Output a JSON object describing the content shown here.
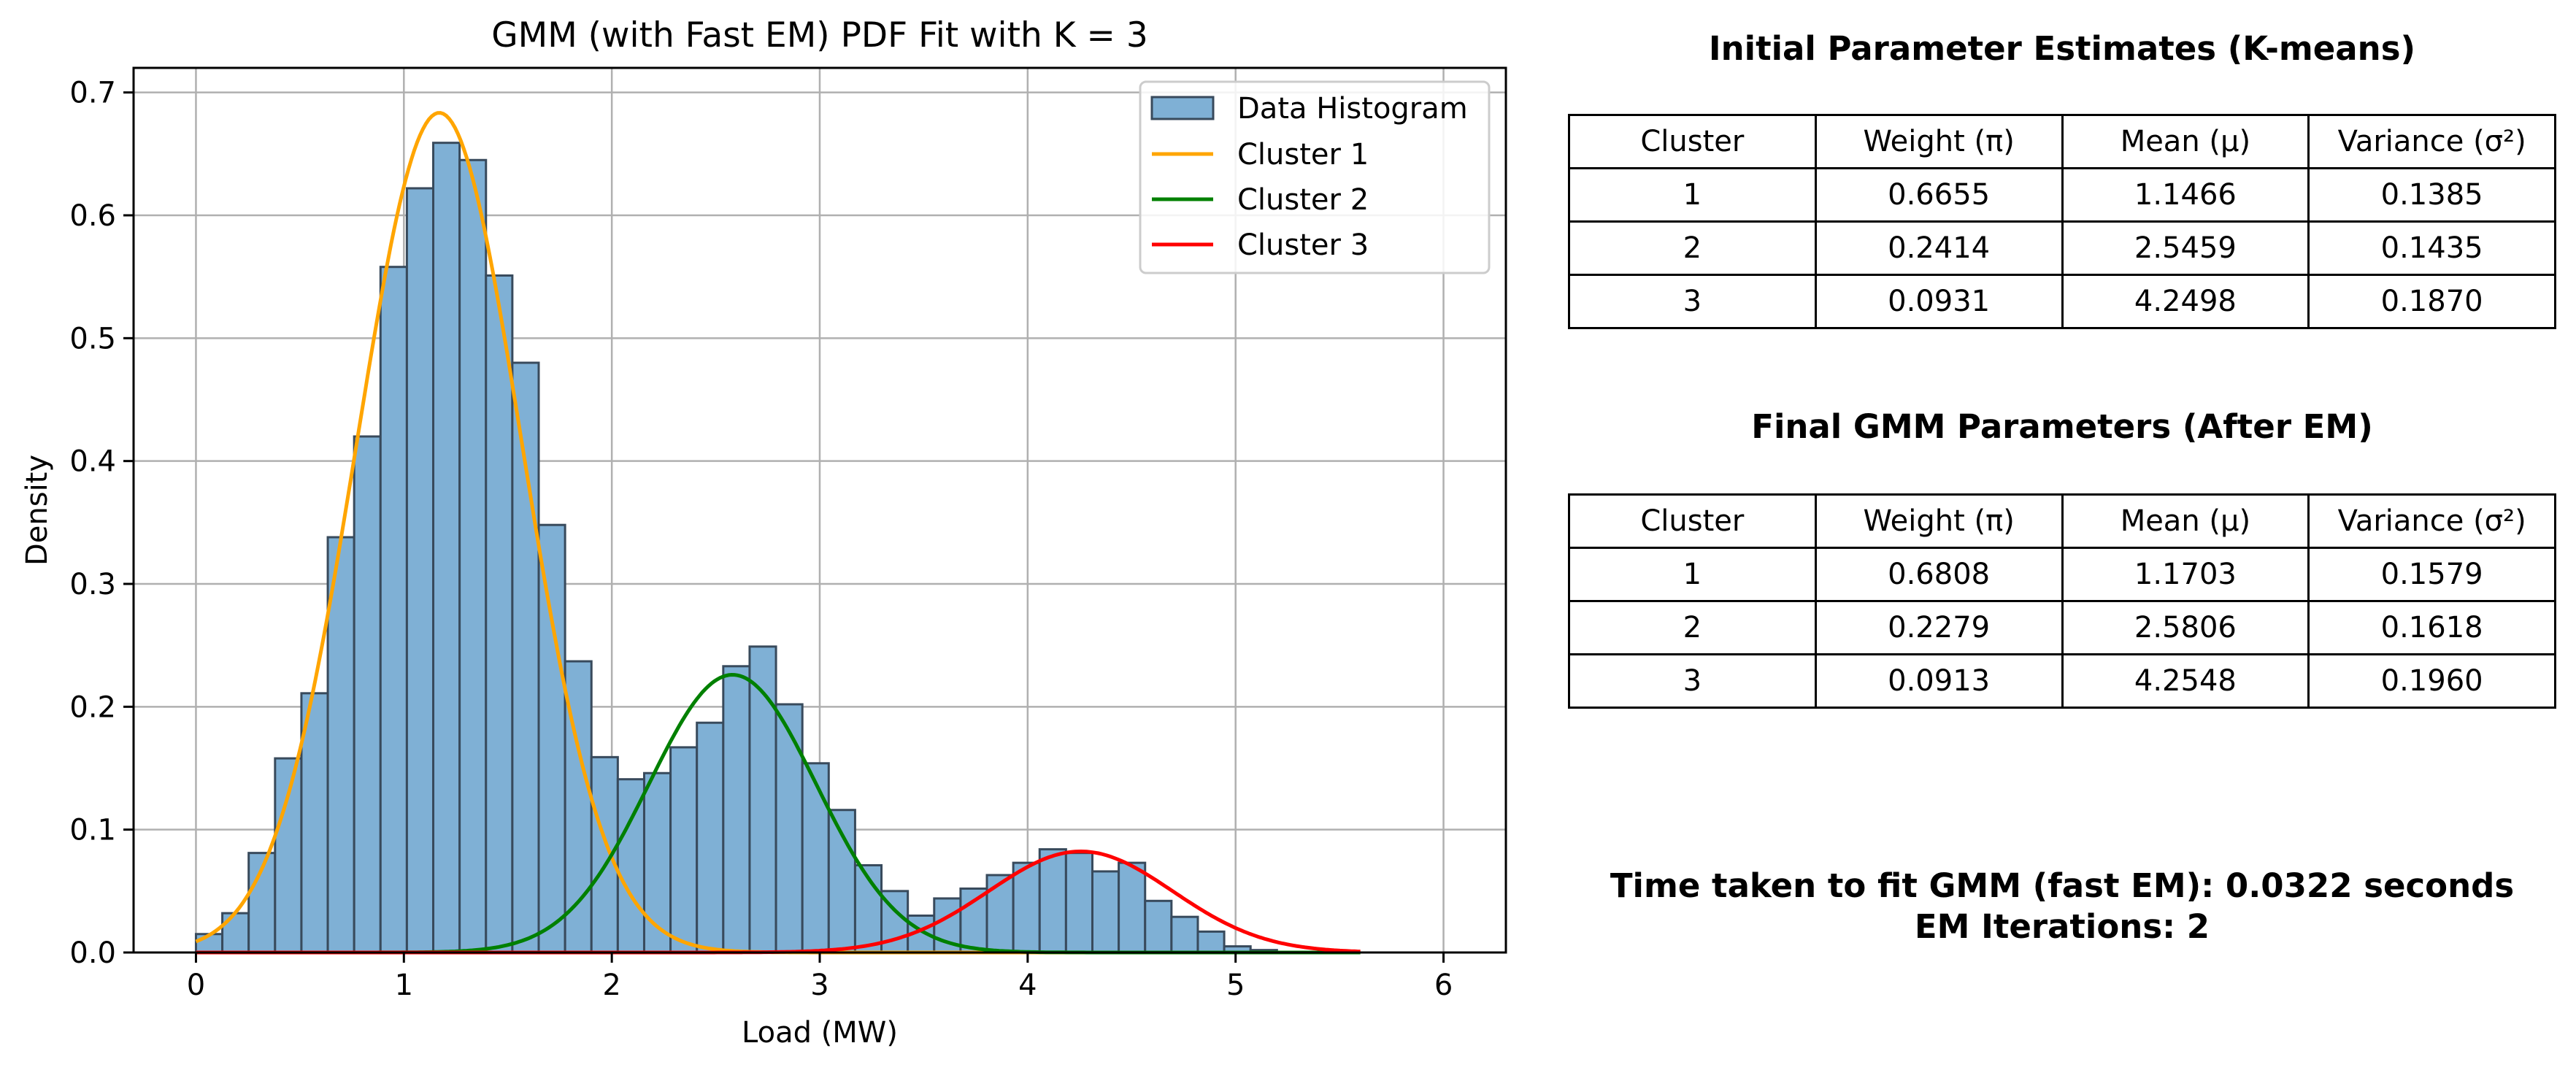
{
  "chart_data": {
    "type": "bar",
    "title": "GMM (with Fast EM) PDF Fit with K = 3",
    "xlabel": "Load (MW)",
    "ylabel": "Density",
    "xlim": [
      -0.3,
      6.3
    ],
    "ylim": [
      0,
      0.72
    ],
    "xticks": [
      "0",
      "1",
      "2",
      "3",
      "4",
      "5",
      "6"
    ],
    "yticks": [
      "0.0",
      "0.1",
      "0.2",
      "0.3",
      "0.4",
      "0.5",
      "0.6",
      "0.7"
    ],
    "grid": true,
    "legend_position": "top-right",
    "histogram": {
      "name": "Data Histogram",
      "color": "#7fb0d5",
      "edge_color": "#384a5c",
      "bin_start": 0.0,
      "bin_width": 0.1268,
      "values": [
        0.015,
        0.032,
        0.081,
        0.158,
        0.211,
        0.338,
        0.42,
        0.558,
        0.622,
        0.659,
        0.645,
        0.551,
        0.48,
        0.348,
        0.237,
        0.159,
        0.141,
        0.146,
        0.167,
        0.187,
        0.233,
        0.249,
        0.202,
        0.154,
        0.116,
        0.071,
        0.05,
        0.03,
        0.044,
        0.052,
        0.063,
        0.073,
        0.084,
        0.081,
        0.066,
        0.073,
        0.042,
        0.029,
        0.017,
        0.005,
        0.002
      ]
    },
    "series": [
      {
        "name": "Cluster 1",
        "color": "#ffa500",
        "weight": 0.6808,
        "mean": 1.1703,
        "variance": 0.1579
      },
      {
        "name": "Cluster 2",
        "color": "#008000",
        "weight": 0.2279,
        "mean": 2.5806,
        "variance": 0.1618
      },
      {
        "name": "Cluster 3",
        "color": "#ff0000",
        "weight": 0.0913,
        "mean": 4.2548,
        "variance": 0.196
      }
    ],
    "curve_range": [
      0,
      5.6
    ]
  },
  "initial": {
    "title": "Initial Parameter Estimates (K-means)",
    "headers": [
      "Cluster",
      "Weight (π)",
      "Mean (μ)",
      "Variance (σ²)"
    ],
    "rows": [
      [
        "1",
        "0.6655",
        "1.1466",
        "0.1385"
      ],
      [
        "2",
        "0.2414",
        "2.5459",
        "0.1435"
      ],
      [
        "3",
        "0.0931",
        "4.2498",
        "0.1870"
      ]
    ]
  },
  "final": {
    "title": "Final GMM Parameters (After EM)",
    "headers": [
      "Cluster",
      "Weight (π)",
      "Mean (μ)",
      "Variance (σ²)"
    ],
    "rows": [
      [
        "1",
        "0.6808",
        "1.1703",
        "0.1579"
      ],
      [
        "2",
        "0.2279",
        "2.5806",
        "0.1618"
      ],
      [
        "3",
        "0.0913",
        "4.2548",
        "0.1960"
      ]
    ]
  },
  "summary": {
    "time_line": "Time taken to fit GMM (fast EM): 0.0322 seconds",
    "iter_line": "EM Iterations: 2"
  }
}
